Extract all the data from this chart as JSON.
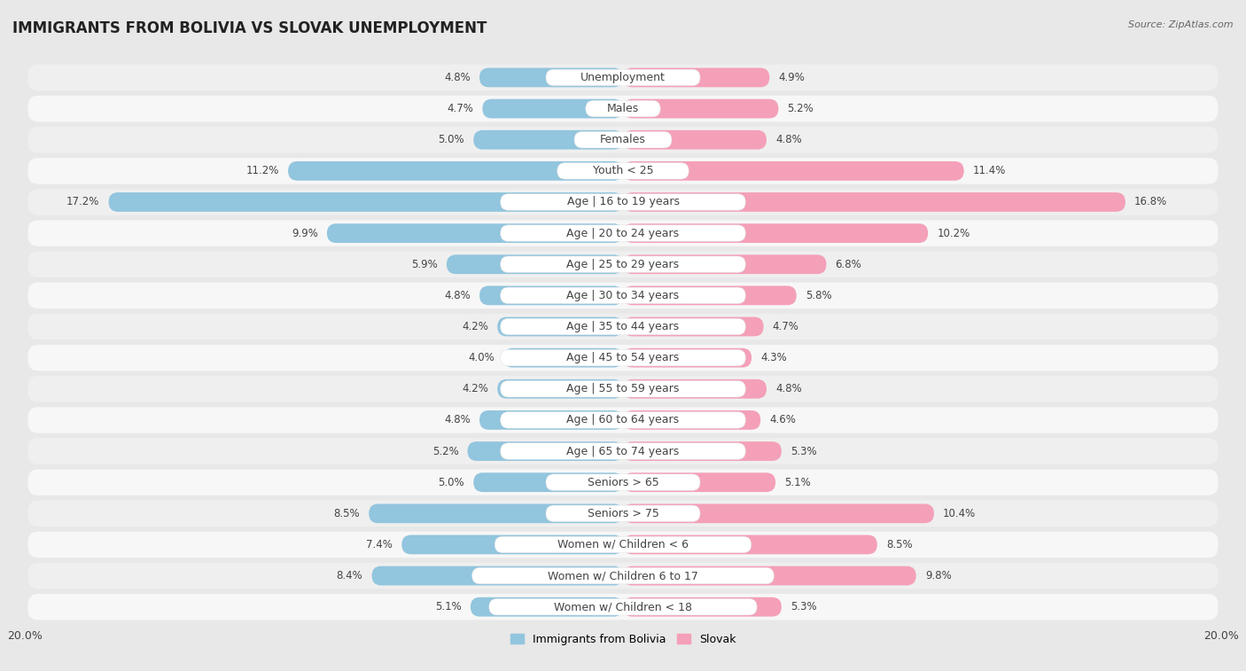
{
  "title": "IMMIGRANTS FROM BOLIVIA VS SLOVAK UNEMPLOYMENT",
  "source": "Source: ZipAtlas.com",
  "categories": [
    "Unemployment",
    "Males",
    "Females",
    "Youth < 25",
    "Age | 16 to 19 years",
    "Age | 20 to 24 years",
    "Age | 25 to 29 years",
    "Age | 30 to 34 years",
    "Age | 35 to 44 years",
    "Age | 45 to 54 years",
    "Age | 55 to 59 years",
    "Age | 60 to 64 years",
    "Age | 65 to 74 years",
    "Seniors > 65",
    "Seniors > 75",
    "Women w/ Children < 6",
    "Women w/ Children 6 to 17",
    "Women w/ Children < 18"
  ],
  "left_values": [
    4.8,
    4.7,
    5.0,
    11.2,
    17.2,
    9.9,
    5.9,
    4.8,
    4.2,
    4.0,
    4.2,
    4.8,
    5.2,
    5.0,
    8.5,
    7.4,
    8.4,
    5.1
  ],
  "right_values": [
    4.9,
    5.2,
    4.8,
    11.4,
    16.8,
    10.2,
    6.8,
    5.8,
    4.7,
    4.3,
    4.8,
    4.6,
    5.3,
    5.1,
    10.4,
    8.5,
    9.8,
    5.3
  ],
  "left_color": "#92c5de",
  "right_color": "#f4a0b8",
  "axis_max": 20.0,
  "background_color": "#e8e8e8",
  "row_color_odd": "#f5f5f5",
  "row_color_even": "#ebebeb",
  "bar_pill_color": "#f0f0f0",
  "title_fontsize": 12,
  "label_fontsize": 9,
  "value_fontsize": 8.5
}
